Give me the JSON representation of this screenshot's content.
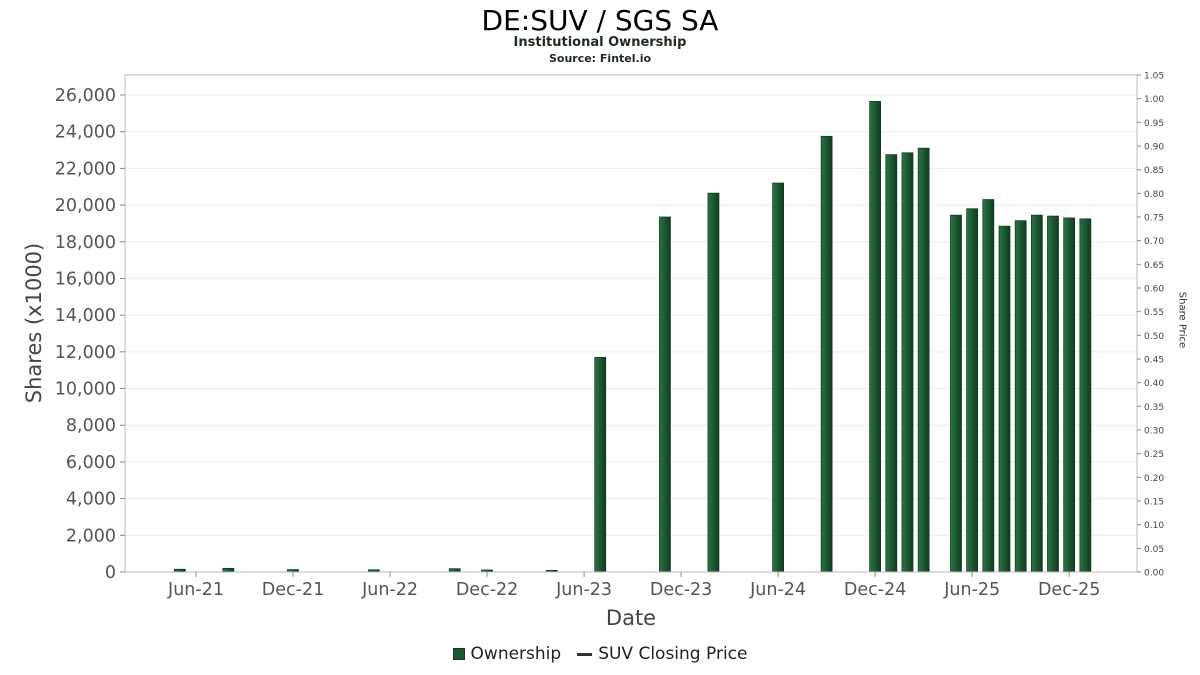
{
  "chart_data": {
    "type": "bar",
    "title": "DE:SUV / SGS SA",
    "subtitle": "Institutional Ownership",
    "source": "Source: Fintel.io",
    "xlabel": "Date",
    "ylabel_left": "Shares (x1000)",
    "ylabel_right": "Share Price",
    "legend": [
      "Ownership",
      "SUV Closing Price"
    ],
    "legend_position": "bottom",
    "grid": true,
    "bar_color": "#1b5832",
    "x_ticks": [
      "Jun-21",
      "Dec-21",
      "Jun-22",
      "Dec-22",
      "Jun-23",
      "Dec-23",
      "Jun-24",
      "Dec-24",
      "Jun-25",
      "Dec-25"
    ],
    "y_left": {
      "min": 0,
      "max": 26000,
      "step": 2000
    },
    "y_right": {
      "min": 0,
      "max": 1.05,
      "step": 0.05
    },
    "points": [
      {
        "date": "May-21",
        "shares": 150
      },
      {
        "date": "Aug-21",
        "shares": 200
      },
      {
        "date": "Dec-21",
        "shares": 130
      },
      {
        "date": "May-22",
        "shares": 120
      },
      {
        "date": "Oct-22",
        "shares": 180
      },
      {
        "date": "Dec-22",
        "shares": 110
      },
      {
        "date": "Apr-23",
        "shares": 90
      },
      {
        "date": "Jul-23",
        "shares": 11700
      },
      {
        "date": "Nov-23",
        "shares": 19350
      },
      {
        "date": "Feb-24",
        "shares": 20650
      },
      {
        "date": "Jun-24",
        "shares": 21200
      },
      {
        "date": "Sep-24",
        "shares": 23750
      },
      {
        "date": "Dec-24",
        "shares": 25650
      },
      {
        "date": "Jan-25",
        "shares": 22750
      },
      {
        "date": "Feb-25",
        "shares": 22850
      },
      {
        "date": "Mar-25",
        "shares": 23100
      },
      {
        "date": "May-25",
        "shares": 19450
      },
      {
        "date": "Jun-25",
        "shares": 19800
      },
      {
        "date": "Jul-25",
        "shares": 20300
      },
      {
        "date": "Aug-25",
        "shares": 18850
      },
      {
        "date": "Sep-25",
        "shares": 19150
      },
      {
        "date": "Oct-25",
        "shares": 19450
      },
      {
        "date": "Nov-25",
        "shares": 19400
      },
      {
        "date": "Dec-25",
        "shares": 19300
      },
      {
        "date": "Jan-26",
        "shares": 19250
      }
    ]
  }
}
